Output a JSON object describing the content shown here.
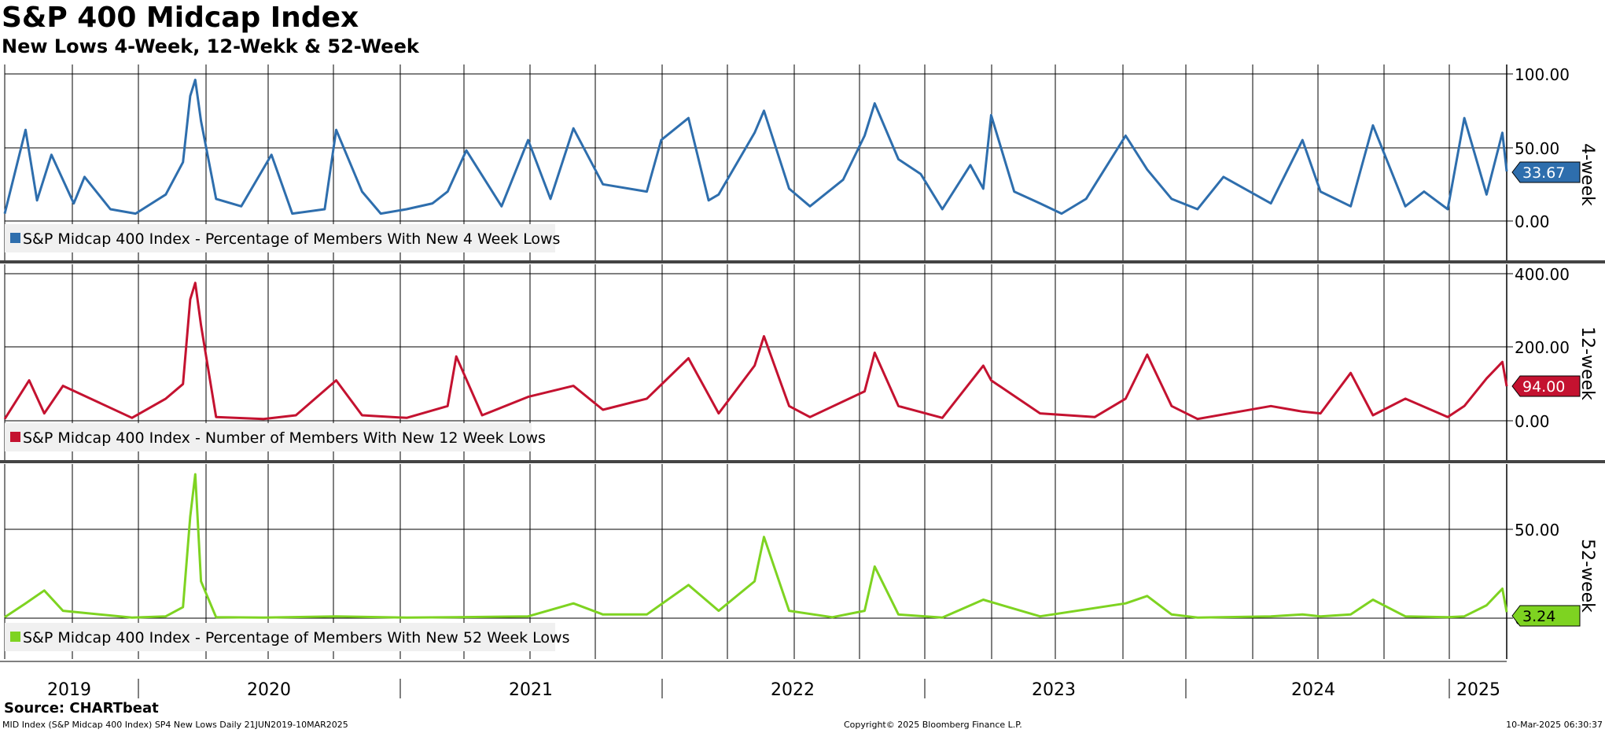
{
  "header": {
    "title": "S&P 400 Midcap Index",
    "subtitle": "New Lows 4-Week, 12-Wekk & 52-Week"
  },
  "footer": {
    "source": "Source: CHARTbeat",
    "left": "MID Index (S&P Midcap 400 Index) SP4 New Lows  Daily 21JUN2019-10MAR2025",
    "center": "Copyright© 2025 Bloomberg Finance L.P.",
    "right": "10-Mar-2025 06:30:37"
  },
  "chart_data": [
    {
      "type": "line",
      "panel_label": "4-week",
      "color": "#2e6ead",
      "legend": "S&P Midcap 400 Index - Percentage of Members With New 4 Week Lows",
      "ylim": [
        0,
        100
      ],
      "yticks": [
        "100.00",
        "50.00",
        "0.00"
      ],
      "last_value": "33.67",
      "x_range": [
        "2019-06-21",
        "2025-03-10"
      ],
      "x": [
        "2019-06-21",
        "2019-07-20",
        "2019-08-05",
        "2019-08-25",
        "2019-09-25",
        "2019-10-10",
        "2019-11-15",
        "2019-12-20",
        "2020-01-31",
        "2020-02-24",
        "2020-03-05",
        "2020-03-12",
        "2020-03-20",
        "2020-04-10",
        "2020-05-15",
        "2020-06-26",
        "2020-07-25",
        "2020-09-08",
        "2020-09-24",
        "2020-10-30",
        "2020-11-25",
        "2020-12-31",
        "2021-02-05",
        "2021-02-26",
        "2021-03-24",
        "2021-05-12",
        "2021-06-18",
        "2021-07-19",
        "2021-08-20",
        "2021-09-30",
        "2021-11-30",
        "2021-12-20",
        "2022-01-27",
        "2022-02-24",
        "2022-03-10",
        "2022-04-29",
        "2022-05-12",
        "2022-06-16",
        "2022-07-15",
        "2022-08-30",
        "2022-09-29",
        "2022-10-13",
        "2022-11-15",
        "2022-12-16",
        "2023-01-15",
        "2023-02-23",
        "2023-03-13",
        "2023-03-24",
        "2023-04-25",
        "2023-05-31",
        "2023-06-30",
        "2023-08-03",
        "2023-09-27",
        "2023-10-27",
        "2023-11-30",
        "2024-01-05",
        "2024-02-10",
        "2024-04-16",
        "2024-05-30",
        "2024-06-24",
        "2024-08-05",
        "2024-09-05",
        "2024-10-20",
        "2024-11-15",
        "2024-12-18",
        "2025-01-10",
        "2025-02-10",
        "2025-03-04",
        "2025-03-10"
      ],
      "values": [
        5,
        62,
        14,
        45,
        12,
        30,
        8,
        5,
        18,
        40,
        85,
        96,
        68,
        15,
        10,
        45,
        5,
        8,
        62,
        20,
        5,
        8,
        12,
        20,
        48,
        10,
        55,
        15,
        63,
        25,
        20,
        55,
        70,
        14,
        18,
        60,
        75,
        22,
        10,
        28,
        58,
        80,
        42,
        32,
        8,
        38,
        22,
        72,
        20,
        12,
        5,
        15,
        58,
        35,
        15,
        8,
        30,
        12,
        55,
        20,
        10,
        65,
        10,
        20,
        8,
        70,
        18,
        60,
        33.67
      ]
    },
    {
      "type": "line",
      "panel_label": "12-week",
      "color": "#c41230",
      "legend": "S&P Midcap 400 Index - Number of Members With New 12 Week Lows",
      "ylim": [
        0,
        400
      ],
      "yticks": [
        "400.00",
        "200.00",
        "0.00"
      ],
      "last_value": "94.00",
      "x_range": [
        "2019-06-21",
        "2025-03-10"
      ],
      "x": [
        "2019-06-21",
        "2019-07-25",
        "2019-08-15",
        "2019-09-10",
        "2019-12-15",
        "2020-01-31",
        "2020-02-24",
        "2020-03-05",
        "2020-03-12",
        "2020-03-20",
        "2020-04-10",
        "2020-06-15",
        "2020-07-30",
        "2020-09-24",
        "2020-10-30",
        "2020-12-31",
        "2021-02-26",
        "2021-03-10",
        "2021-04-15",
        "2021-06-18",
        "2021-08-20",
        "2021-09-30",
        "2021-11-30",
        "2022-01-27",
        "2022-03-10",
        "2022-04-29",
        "2022-05-12",
        "2022-06-16",
        "2022-07-15",
        "2022-09-29",
        "2022-10-13",
        "2022-11-15",
        "2023-01-15",
        "2023-03-13",
        "2023-03-24",
        "2023-05-31",
        "2023-08-15",
        "2023-09-27",
        "2023-10-27",
        "2023-11-30",
        "2024-01-05",
        "2024-04-16",
        "2024-05-30",
        "2024-06-24",
        "2024-08-05",
        "2024-09-05",
        "2024-10-20",
        "2024-12-18",
        "2025-01-10",
        "2025-02-10",
        "2025-03-04",
        "2025-03-10"
      ],
      "values": [
        5,
        110,
        20,
        95,
        8,
        60,
        100,
        330,
        375,
        260,
        10,
        5,
        15,
        110,
        15,
        8,
        40,
        175,
        15,
        65,
        95,
        30,
        60,
        170,
        20,
        150,
        230,
        40,
        10,
        80,
        185,
        40,
        8,
        150,
        110,
        20,
        10,
        60,
        180,
        40,
        5,
        40,
        25,
        20,
        130,
        15,
        60,
        10,
        40,
        115,
        160,
        94
      ]
    },
    {
      "type": "line",
      "panel_label": "52-week",
      "color": "#7ed321",
      "legend": "S&P Midcap 400 Index - Percentage of Members With New 52 Week Lows",
      "ylim": [
        0,
        75
      ],
      "yticks": [
        "50.00",
        "0.00"
      ],
      "last_value": "3.24",
      "x_range": [
        "2019-06-21",
        "2025-03-10"
      ],
      "x": [
        "2019-06-21",
        "2019-07-20",
        "2019-08-15",
        "2019-09-10",
        "2019-12-15",
        "2020-01-31",
        "2020-02-24",
        "2020-03-05",
        "2020-03-12",
        "2020-03-20",
        "2020-04-10",
        "2020-06-15",
        "2020-09-24",
        "2020-12-31",
        "2021-03-10",
        "2021-06-18",
        "2021-08-20",
        "2021-09-30",
        "2021-11-30",
        "2022-01-27",
        "2022-03-10",
        "2022-04-29",
        "2022-05-12",
        "2022-06-16",
        "2022-08-15",
        "2022-09-29",
        "2022-10-13",
        "2022-11-15",
        "2023-01-15",
        "2023-03-13",
        "2023-05-31",
        "2023-09-27",
        "2023-10-27",
        "2023-11-30",
        "2024-01-05",
        "2024-04-16",
        "2024-05-30",
        "2024-06-24",
        "2024-08-05",
        "2024-09-05",
        "2024-10-20",
        "2024-12-18",
        "2025-01-10",
        "2025-02-10",
        "2025-03-04",
        "2025-03-10"
      ],
      "values": [
        0.5,
        8,
        15,
        4,
        0.3,
        1,
        6,
        55,
        78,
        20,
        0.5,
        0.3,
        1,
        0.3,
        0.5,
        1,
        8,
        2,
        2,
        18,
        4,
        20,
        44,
        4,
        0.5,
        4,
        28,
        2,
        0.3,
        10,
        1,
        8,
        12,
        2,
        0.3,
        1,
        2,
        1,
        2,
        10,
        1,
        0.5,
        1,
        7,
        16,
        3.24
      ]
    }
  ],
  "x_axis": {
    "years": [
      "2019",
      "2020",
      "2021",
      "2022",
      "2023",
      "2024",
      "2025"
    ]
  }
}
